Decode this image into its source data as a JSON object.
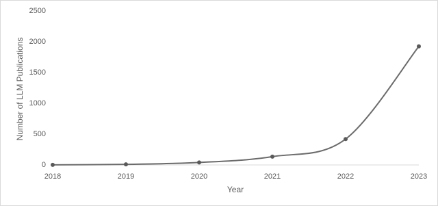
{
  "chart_data": {
    "type": "line",
    "x": [
      2018,
      2019,
      2020,
      2021,
      2022,
      2023
    ],
    "series": [
      {
        "name": "LLM Publications",
        "color": "#6b6b6b",
        "values": [
          2,
          10,
          40,
          135,
          420,
          1925
        ]
      }
    ],
    "xlim": [
      2018,
      2023
    ],
    "xticks": [
      2018,
      2019,
      2020,
      2021,
      2022,
      2023
    ],
    "ylim": [
      0,
      2500
    ],
    "yticks": [
      0,
      500,
      1000,
      1500,
      2000,
      2500
    ],
    "xlabel": "Year",
    "ylabel": "Number of LLM Publications",
    "grid": false,
    "smooth": true
  }
}
